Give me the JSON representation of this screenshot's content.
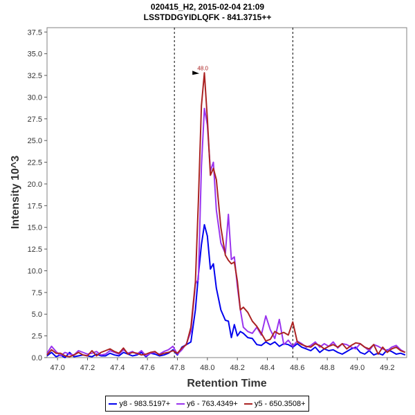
{
  "chart_data": {
    "type": "line",
    "title": "020415_H2, 2015-02-04 21:09",
    "subtitle": "LSSTDDGYIDLQFK - 841.3715++",
    "xlabel": "Retention Time",
    "ylabel": "Intensity 10^3",
    "xlim": [
      46.93,
      49.33
    ],
    "ylim": [
      0,
      38
    ],
    "x_ticks": [
      "47.0",
      "47.2",
      "47.4",
      "47.6",
      "47.8",
      "48.0",
      "48.2",
      "48.4",
      "48.6",
      "48.8",
      "49.0",
      "49.2"
    ],
    "y_ticks": [
      "0.0",
      "2.5",
      "5.0",
      "7.5",
      "10.0",
      "12.5",
      "15.0",
      "17.5",
      "20.0",
      "22.5",
      "25.0",
      "27.5",
      "30.0",
      "32.5",
      "35.0",
      "37.5"
    ],
    "boundaries": [
      47.78,
      48.57
    ],
    "peak_annotation": {
      "label": "48.0",
      "x": 47.96,
      "y": 32.8
    },
    "x": [
      46.93,
      46.96,
      46.99,
      47.02,
      47.05,
      47.08,
      47.11,
      47.14,
      47.17,
      47.2,
      47.23,
      47.26,
      47.29,
      47.32,
      47.35,
      47.38,
      47.41,
      47.44,
      47.47,
      47.5,
      47.53,
      47.56,
      47.59,
      47.62,
      47.65,
      47.68,
      47.71,
      47.74,
      47.77,
      47.8,
      47.83,
      47.86,
      47.89,
      47.92,
      47.94,
      47.96,
      47.98,
      48.0,
      48.02,
      48.04,
      48.06,
      48.09,
      48.12,
      48.14,
      48.16,
      48.18,
      48.2,
      48.22,
      48.24,
      48.27,
      48.3,
      48.33,
      48.36,
      48.39,
      48.42,
      48.45,
      48.48,
      48.51,
      48.54,
      48.57,
      48.6,
      48.63,
      48.66,
      48.69,
      48.72,
      48.75,
      48.78,
      48.81,
      48.84,
      48.87,
      48.9,
      48.93,
      48.96,
      48.99,
      49.02,
      49.05,
      49.08,
      49.11,
      49.14,
      49.17,
      49.2,
      49.23,
      49.26,
      49.29,
      49.32
    ],
    "series": [
      {
        "name": "y8 - 983.5197+",
        "color": "#0000ee",
        "values": [
          0.2,
          0.6,
          0.1,
          0.3,
          0.0,
          0.6,
          0.1,
          0.2,
          0.3,
          0.2,
          0.1,
          0.4,
          0.2,
          0.2,
          0.5,
          0.3,
          0.2,
          0.6,
          0.4,
          0.2,
          0.3,
          0.6,
          0.1,
          0.5,
          0.4,
          0.2,
          0.3,
          0.5,
          0.9,
          0.3,
          1.2,
          1.5,
          1.8,
          5.5,
          9.5,
          13.0,
          15.3,
          14.0,
          10.2,
          10.8,
          8.0,
          5.5,
          4.3,
          4.2,
          2.3,
          3.8,
          2.5,
          3.0,
          2.8,
          2.3,
          2.2,
          1.5,
          1.4,
          1.8,
          1.5,
          1.8,
          1.3,
          1.6,
          1.5,
          1.2,
          1.6,
          1.2,
          1.0,
          0.8,
          1.2,
          0.6,
          1.0,
          0.8,
          0.9,
          0.6,
          0.4,
          0.7,
          1.0,
          1.2,
          0.6,
          0.4,
          0.8,
          0.3,
          0.5,
          0.3,
          0.9,
          0.7,
          0.4,
          0.5,
          0.3
        ]
      },
      {
        "name": "y6 - 763.4349+",
        "color": "#9933ee",
        "values": [
          0.5,
          1.3,
          0.7,
          0.2,
          0.6,
          0.4,
          0.3,
          0.8,
          0.6,
          0.4,
          0.5,
          0.7,
          0.3,
          0.4,
          0.8,
          0.6,
          0.4,
          0.9,
          0.5,
          0.7,
          0.4,
          0.8,
          0.2,
          0.5,
          0.6,
          0.4,
          0.7,
          0.9,
          1.3,
          0.4,
          0.9,
          1.6,
          3.0,
          8.5,
          9.0,
          22.0,
          28.7,
          26.8,
          21.5,
          22.5,
          17.0,
          13.2,
          12.0,
          16.5,
          11.3,
          11.6,
          8.2,
          5.5,
          3.5,
          3.0,
          2.8,
          3.5,
          2.6,
          4.8,
          3.2,
          2.2,
          4.4,
          1.5,
          2.0,
          1.3,
          1.9,
          1.6,
          1.2,
          1.4,
          1.8,
          1.2,
          1.6,
          1.3,
          1.8,
          1.1,
          1.6,
          1.5,
          1.2,
          1.0,
          1.6,
          1.2,
          0.8,
          1.5,
          1.3,
          1.0,
          0.8,
          1.2,
          1.4,
          0.9,
          0.6
        ]
      },
      {
        "name": "y5 - 650.3508+",
        "color": "#aa2222",
        "values": [
          0.3,
          0.9,
          0.5,
          0.5,
          0.2,
          0.1,
          0.3,
          0.6,
          0.3,
          0.2,
          0.8,
          0.2,
          0.6,
          0.8,
          1.0,
          0.7,
          0.5,
          1.1,
          0.4,
          0.6,
          0.5,
          0.3,
          0.4,
          0.6,
          0.7,
          0.3,
          0.5,
          0.6,
          0.8,
          0.5,
          1.1,
          1.5,
          3.5,
          8.7,
          18.0,
          29.0,
          32.8,
          27.5,
          21.0,
          21.8,
          20.5,
          15.0,
          11.8,
          11.2,
          10.8,
          11.0,
          8.8,
          5.5,
          5.8,
          5.2,
          4.2,
          3.6,
          2.8,
          1.9,
          2.1,
          3.0,
          2.7,
          2.9,
          2.6,
          4.1,
          1.8,
          1.5,
          1.3,
          1.2,
          1.6,
          1.4,
          1.0,
          1.3,
          1.5,
          1.2,
          1.6,
          1.0,
          1.4,
          1.7,
          1.6,
          1.2,
          1.0,
          1.5,
          0.4,
          1.2,
          0.6,
          1.0,
          1.2,
          0.8,
          0.6
        ]
      }
    ]
  }
}
